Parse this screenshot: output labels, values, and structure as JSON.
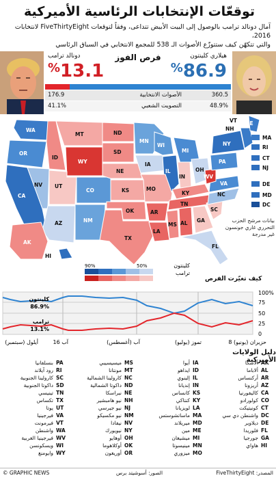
{
  "header": {
    "title": "توقعّات الإنتخابات الرئاسية الأميركية",
    "subtitle_line1": "آمال دونالد ترامب بالوصول إلى البيت الأبيض تتداعى، وفقاً لتوقعات FiveThirtyEight لانتخابات 2016،",
    "subtitle_line2": "والتي تتكهّن كيف ستتوزّع الأصوات الـ 538 للمجمع الانتخابي في السباق الرئاسي"
  },
  "results": {
    "chances_label": "فرص الفوز",
    "clinton": {
      "name": "هيلاري كلينتون",
      "chance": "86.9",
      "pct_sign": "%",
      "electoral": "360.5",
      "popular": "48.9%"
    },
    "trump": {
      "name": "دونالد ترامب",
      "chance": "13.1",
      "pct_sign": "%",
      "electoral": "176.9",
      "popular": "41.1%"
    },
    "electoral_label": "الأصوات الانتخابية",
    "popular_label": "التصويت الشعبي",
    "clinton_share": 0.869,
    "colors": {
      "clinton": "#2e83d1",
      "trump": "#e3252b"
    }
  },
  "map": {
    "states": [
      "WA",
      "OR",
      "CA",
      "NV",
      "ID",
      "MT",
      "WY",
      "UT",
      "AZ",
      "CO",
      "NM",
      "ND",
      "SD",
      "NE",
      "KS",
      "OK",
      "TX",
      "MN",
      "IA",
      "MO",
      "AR",
      "LA",
      "WI",
      "IL",
      "MI",
      "IN",
      "OH",
      "KY",
      "TN",
      "MS",
      "AL",
      "GA",
      "FL",
      "SC",
      "NC",
      "VA",
      "WV",
      "PA",
      "NY",
      "ME",
      "AK",
      "HI"
    ],
    "side_labels": [
      "NH",
      "VT",
      "MA",
      "RI",
      "CT",
      "NJ",
      "DE",
      "MD",
      "DC",
      "ME"
    ],
    "note": "بيانات مرشح الحزب التحرري غاري جونسون غير مدرجة"
  },
  "legend": {
    "clinton": "كلينتون",
    "trump": "ترامب",
    "pct90": "90%",
    "pct50": "50%",
    "title": "كيف تغيّرت الفرص"
  },
  "trend": {
    "clinton_label": "كلينتون",
    "clinton_value": "86.9%",
    "trump_label": "ترامب",
    "trump_value": "13.1%",
    "y_ticks": [
      "100%",
      "75",
      "50",
      "25",
      "0"
    ],
    "x_labels": [
      "8 حزيران (يونيو)",
      "تموز (يوليو)",
      "آب (أغسطس)",
      "16 آب",
      "أيلول (سبتمبر)"
    ]
  },
  "states_key": {
    "title": "دليل الولايات الأميركية",
    "columns": [
      [
        [
          "AK",
          "ألاسكا"
        ],
        [
          "AL",
          "ألاباما"
        ],
        [
          "AR",
          "أركنساس"
        ],
        [
          "AZ",
          "أريزونا"
        ],
        [
          "CA",
          "كاليفورنيا"
        ],
        [
          "CO",
          "كولورادو"
        ],
        [
          "CT",
          "كونيتيكت"
        ],
        [
          "DC",
          "واشنطن دي سي"
        ],
        [
          "DE",
          "ديلاوير"
        ],
        [
          "FL",
          "فلوريدا"
        ],
        [
          "GA",
          "جورجيا"
        ],
        [
          "HI",
          "هاواي"
        ]
      ],
      [
        [
          "IA",
          "أيوا"
        ],
        [
          "ID",
          "ايداهو"
        ],
        [
          "IL",
          "إلينوي"
        ],
        [
          "IN",
          "إنديانا"
        ],
        [
          "KS",
          "كانساس"
        ],
        [
          "KY",
          "كنتاكي"
        ],
        [
          "LA",
          "لويزيانا"
        ],
        [
          "MA",
          "ماساتشوستس"
        ],
        [
          "MD",
          "ميريلاند"
        ],
        [
          "ME",
          "مين"
        ],
        [
          "MI",
          "ميشيغان"
        ],
        [
          "MN",
          "مينيسوتا"
        ],
        [
          "MO",
          "ميزوري"
        ]
      ],
      [
        [
          "MS",
          "ميسيسيبي"
        ],
        [
          "MT",
          "مونتانا"
        ],
        [
          "NC",
          "كارولينا الشمالية"
        ],
        [
          "ND",
          "داكوتا الشمالية"
        ],
        [
          "NE",
          "نبراسكا"
        ],
        [
          "NH",
          "نيو هامبشير"
        ],
        [
          "NJ",
          "نيو جيرسي"
        ],
        [
          "NM",
          "نيو مكسيكو"
        ],
        [
          "NV",
          "نيفادا"
        ],
        [
          "NY",
          "نيويورك"
        ],
        [
          "OH",
          "أوهايو"
        ],
        [
          "OK",
          "أوكلاهوما"
        ],
        [
          "OR",
          "أوريغون"
        ]
      ],
      [
        [
          "PA",
          "بنسلفانيا"
        ],
        [
          "RI",
          "رود آيلاند"
        ],
        [
          "SC",
          "كارولينا الجنوبية"
        ],
        [
          "SD",
          "داكوتا الجنوبية"
        ],
        [
          "TN",
          "تينيسي"
        ],
        [
          "TX",
          "تكساس"
        ],
        [
          "UT",
          "يوتا"
        ],
        [
          "VA",
          "فيرجينيا"
        ],
        [
          "VT",
          "فيرمونت"
        ],
        [
          "WA",
          "واشنطن"
        ],
        [
          "WV",
          "فيرجينيا الغربية"
        ],
        [
          "WI",
          "ويسكونسن"
        ],
        [
          "WY",
          "وايومنغ"
        ]
      ]
    ]
  },
  "footer": {
    "brand": "© GRAPHIC NEWS",
    "source": "المصدر: FiveThirtyEight",
    "photos": "الصور: أسوشيتد برس"
  }
}
